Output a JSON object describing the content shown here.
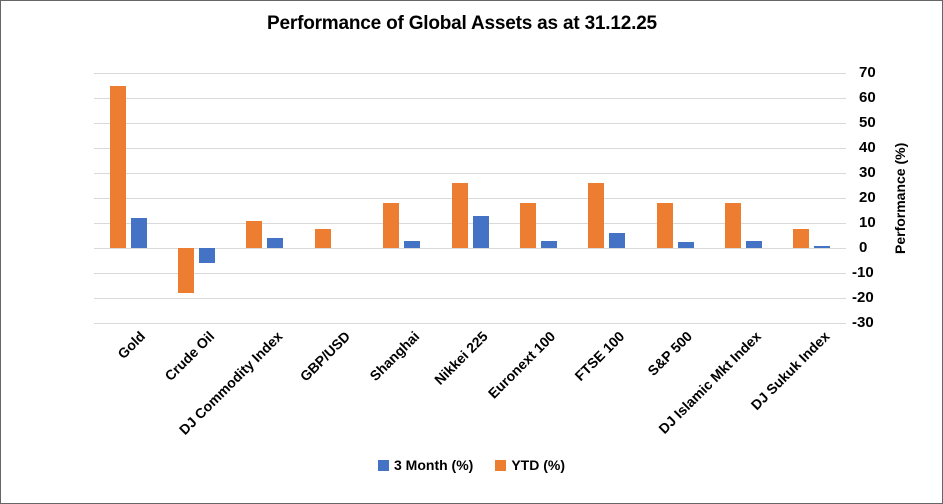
{
  "chart_data": {
    "type": "bar",
    "title": "Performance of Global Assets as at 31.12.25",
    "categories": [
      "Gold",
      "Crude Oil",
      "DJ Commodity Index",
      "GBP/USD",
      "Shanghai",
      "Nikkei 225",
      "Euronext 100",
      "FTSE 100",
      "S&P 500",
      "DJ Islamic Mkt Index",
      "DJ Sukuk Index"
    ],
    "series": [
      {
        "name": "3 Month (%)",
        "color": "#4472C4",
        "values": [
          12,
          -6,
          4,
          0,
          3,
          13,
          3,
          6,
          2.5,
          3,
          1
        ]
      },
      {
        "name": "YTD (%)",
        "color": "#ED7D31",
        "values": [
          65,
          -18,
          11,
          7.5,
          18,
          26,
          18,
          26,
          18,
          18,
          7.5
        ]
      }
    ],
    "bar_draw_order": [
      "YTD (%)",
      "3 Month (%)"
    ],
    "value_axis": {
      "title": "Performance (%)",
      "position": "right",
      "min": -30,
      "max": 70,
      "tick_step": 10,
      "tick_labels": [
        "70",
        "60",
        "50",
        "40",
        "30",
        "20",
        "10",
        "0",
        "-10",
        "-20",
        "-30"
      ]
    },
    "category_axis": {
      "label_rotation_deg": 45
    },
    "legend": {
      "position": "bottom",
      "entries": [
        {
          "label": "3 Month (%)",
          "color": "#4472C4"
        },
        {
          "label": "YTD (%)",
          "color": "#ED7D31"
        }
      ]
    },
    "grid": {
      "horizontal": true,
      "color": "#D9D9D9"
    },
    "ylim": [
      -30,
      70
    ]
  },
  "colors": {
    "accent_blue": "#4472C4",
    "accent_orange": "#ED7D31",
    "gridline": "#D9D9D9",
    "text": "#000000",
    "background": "#FFFFFF",
    "frame_border": "#666666"
  }
}
